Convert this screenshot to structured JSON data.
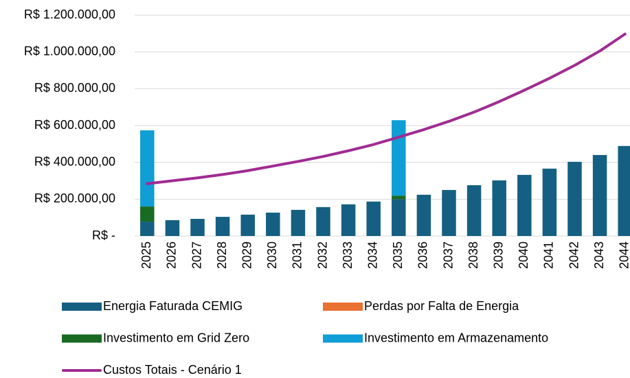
{
  "chart_data": {
    "type": "bar",
    "stacked": true,
    "grid": true,
    "categories": [
      "2025",
      "2026",
      "2027",
      "2028",
      "2029",
      "2030",
      "2031",
      "2032",
      "2033",
      "2034",
      "2035",
      "2036",
      "2037",
      "2038",
      "2039",
      "2040",
      "2041",
      "2042",
      "2043",
      "2044"
    ],
    "ylim": [
      0,
      1200000
    ],
    "yticks": [
      {
        "value": 0,
        "label": "R$ -"
      },
      {
        "value": 200000,
        "label": "R$ 200.000,00"
      },
      {
        "value": 400000,
        "label": "R$ 400.000,00"
      },
      {
        "value": 600000,
        "label": "R$ 600.000,00"
      },
      {
        "value": 800000,
        "label": "R$ 800.000,00"
      },
      {
        "value": 1000000,
        "label": "R$ 1.000.000,00"
      },
      {
        "value": 1200000,
        "label": "R$ 1.200.000,00"
      }
    ],
    "series": [
      {
        "name": "Energia Faturada CEMIG",
        "color": "#156082",
        "type": "bar",
        "values": [
          78000,
          86000,
          93000,
          104000,
          116000,
          127000,
          142000,
          157000,
          172000,
          187000,
          200000,
          224000,
          250000,
          276000,
          302000,
          332000,
          366000,
          403000,
          440000,
          489000
        ]
      },
      {
        "name": "Perdas por Falta de Energia",
        "color": "#e97132",
        "type": "bar",
        "values": [
          0,
          0,
          0,
          0,
          0,
          0,
          0,
          0,
          0,
          0,
          0,
          0,
          0,
          0,
          0,
          0,
          0,
          0,
          0,
          0
        ]
      },
      {
        "name": "Investimento em Grid Zero",
        "color": "#196b24",
        "type": "bar",
        "values": [
          82000,
          0,
          0,
          0,
          0,
          0,
          0,
          0,
          0,
          0,
          19000,
          0,
          0,
          0,
          0,
          0,
          0,
          0,
          0,
          0
        ]
      },
      {
        "name": "Investimento em Armazenamento",
        "color": "#0f9ed5",
        "type": "bar",
        "values": [
          414000,
          0,
          0,
          0,
          0,
          0,
          0,
          0,
          0,
          0,
          410000,
          0,
          0,
          0,
          0,
          0,
          0,
          0,
          0,
          0
        ]
      },
      {
        "name": "Custos Totais - Cenário 1",
        "color": "#a02b93",
        "type": "line",
        "values": [
          284000,
          300000,
          316000,
          334000,
          355000,
          380000,
          405000,
          432000,
          463000,
          497000,
          537000,
          578000,
          623000,
          673000,
          730000,
          792000,
          857000,
          927000,
          1005000,
          1097000
        ]
      }
    ]
  }
}
